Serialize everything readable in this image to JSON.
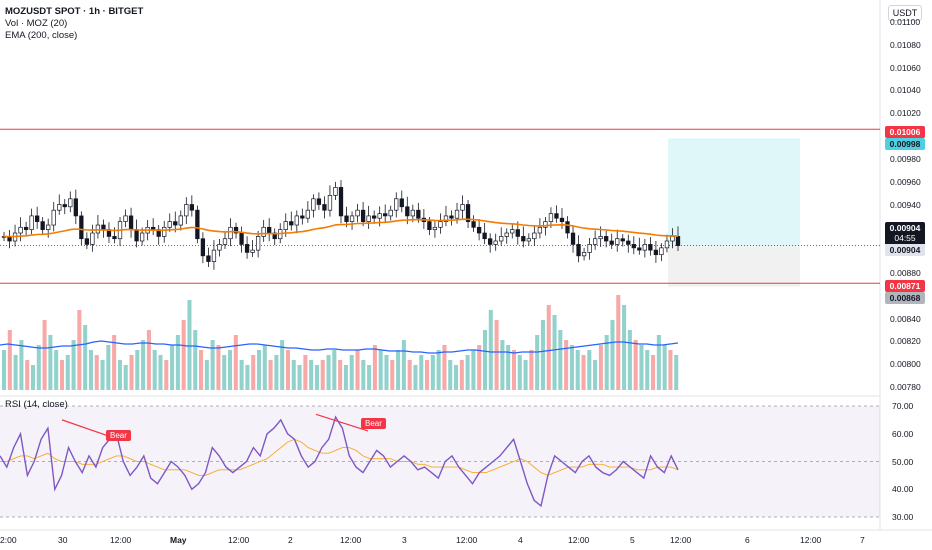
{
  "header": {
    "title": "MOZUSDT SPOT · 1h · BITGET",
    "volume_label": "Vol · MOZ (20)",
    "ema_label": "EMA (200, close)",
    "currency": "USDT"
  },
  "price_axis": {
    "labels": [
      "0.01100",
      "0.01080",
      "0.01060",
      "0.01040",
      "0.01020",
      "0.00980",
      "0.00960",
      "0.00940",
      "0.00880",
      "0.00840",
      "0.00820",
      "0.00800",
      "0.00780"
    ]
  },
  "price_tags": {
    "upper_line": "0.01006",
    "target": "0.00998",
    "current": "0.00904",
    "countdown": "04:55",
    "last": "0.00904",
    "lower_line": "0.00871",
    "stop": "0.00868"
  },
  "rsi": {
    "label": "RSI (14, close)",
    "axis_labels": [
      "70.00",
      "60.00",
      "50.00",
      "40.00",
      "30.00"
    ],
    "divergence_labels": [
      "Bear",
      "Bear"
    ]
  },
  "time_axis": {
    "labels": [
      "2:00",
      "30",
      "12:00",
      "May",
      "12:00",
      "2",
      "12:00",
      "3",
      "12:00",
      "4",
      "12:00",
      "5",
      "12:00",
      "6",
      "12:00",
      "7"
    ]
  },
  "chart_data": [
    {
      "type": "candlestick",
      "title": "MOZUSDT SPOT · 1h · BITGET",
      "ylim": [
        0.0086,
        0.0111
      ],
      "overlays": [
        "EMA (200, close)"
      ],
      "horizontal_lines": [
        0.01006,
        0.00871
      ],
      "position_tool": {
        "entry": 0.00904,
        "target": 0.00998,
        "stop": 0.00868
      },
      "close_series": [
        0.00912,
        0.00908,
        0.00915,
        0.0092,
        0.00918,
        0.0093,
        0.00925,
        0.00918,
        0.00922,
        0.00935,
        0.0094,
        0.00938,
        0.00945,
        0.0093,
        0.0091,
        0.00905,
        0.00915,
        0.00922,
        0.00918,
        0.00912,
        0.0091,
        0.00925,
        0.0093,
        0.00918,
        0.00908,
        0.00915,
        0.0092,
        0.00918,
        0.00912,
        0.0092,
        0.00925,
        0.00922,
        0.0093,
        0.0094,
        0.00935,
        0.0091,
        0.00895,
        0.0089,
        0.009,
        0.00905,
        0.0091,
        0.0092,
        0.00915,
        0.00905,
        0.00898,
        0.009,
        0.00912,
        0.0092,
        0.00915,
        0.0091,
        0.00918,
        0.00925,
        0.00922,
        0.0093,
        0.00928,
        0.00935,
        0.00945,
        0.0094,
        0.00935,
        0.00948,
        0.00955,
        0.0093,
        0.00925,
        0.0093,
        0.00935,
        0.00925,
        0.0093,
        0.00928,
        0.00932,
        0.0093,
        0.00935,
        0.00945,
        0.00938,
        0.0093,
        0.00935,
        0.00928,
        0.00925,
        0.00918,
        0.0092,
        0.00925,
        0.0093,
        0.00928,
        0.00935,
        0.0094,
        0.00925,
        0.0092,
        0.00915,
        0.0091,
        0.00905,
        0.00908,
        0.00912,
        0.00915,
        0.00918,
        0.00912,
        0.00908,
        0.0091,
        0.00915,
        0.0092,
        0.00925,
        0.00932,
        0.00928,
        0.00925,
        0.00915,
        0.00905,
        0.00895,
        0.00898,
        0.00905,
        0.0091,
        0.00912,
        0.00908,
        0.00905,
        0.0091,
        0.00908,
        0.00905,
        0.00902,
        0.009,
        0.00905,
        0.009,
        0.00896,
        0.00902,
        0.00908,
        0.00912,
        0.00904
      ]
    },
    {
      "type": "bar",
      "title": "Vol · MOZ (20)",
      "series": [
        {
          "name": "Vol · MOZ (20)",
          "values": [
            40,
            60,
            35,
            50,
            30,
            25,
            45,
            70,
            55,
            40,
            30,
            35,
            50,
            80,
            65,
            40,
            35,
            30,
            45,
            55,
            30,
            25,
            35,
            40,
            50,
            60,
            40,
            35,
            30,
            45,
            55,
            70,
            90,
            60,
            40,
            30,
            50,
            45,
            35,
            40,
            55,
            30,
            25,
            35,
            40,
            45,
            30,
            35,
            50,
            40,
            30,
            25,
            35,
            30,
            25,
            30,
            35,
            40,
            30,
            25,
            35,
            40,
            30,
            25,
            45,
            40,
            35,
            30,
            40,
            50,
            30,
            25,
            35,
            30,
            35,
            40,
            45,
            30,
            25,
            30,
            35,
            40,
            45,
            60,
            80,
            70,
            50,
            45,
            40,
            35,
            30,
            40,
            55,
            70,
            85,
            75,
            60,
            50,
            45,
            40,
            35,
            40,
            30,
            45,
            55,
            70,
            95,
            85,
            60,
            50,
            45,
            40,
            35,
            55,
            45,
            40,
            35
          ]
        },
        {
          "name": "MA",
          "values": [
            45,
            46,
            45,
            44,
            43,
            42,
            42,
            43,
            44,
            44,
            45,
            46,
            48,
            49,
            48,
            47,
            46,
            46,
            47,
            47,
            46,
            46,
            45,
            45,
            44,
            44,
            43,
            42,
            42,
            43,
            44,
            45,
            46,
            46,
            45,
            44,
            43,
            42,
            42,
            41,
            40,
            40,
            41,
            41,
            40,
            40,
            40,
            41,
            41,
            40,
            39,
            39,
            39,
            38,
            38,
            37,
            37,
            38,
            38,
            39,
            40,
            40,
            39,
            38,
            38,
            38,
            37,
            38,
            38,
            38,
            39,
            40,
            41,
            42,
            43,
            44,
            45,
            46,
            47,
            48,
            48,
            47,
            46,
            46,
            45,
            45,
            46,
            47
          ]
        }
      ]
    },
    {
      "type": "line",
      "title": "RSI (14, close)",
      "ylim": [
        30,
        70
      ],
      "series": [
        {
          "name": "RSI (14, close)",
          "values": [
            52,
            48,
            55,
            60,
            45,
            50,
            58,
            62,
            40,
            45,
            55,
            50,
            46,
            52,
            48,
            55,
            58,
            60,
            50,
            45,
            48,
            52,
            44,
            42,
            46,
            50,
            48,
            45,
            40,
            42,
            46,
            55,
            52,
            48,
            46,
            48,
            50,
            55,
            52,
            60,
            62,
            65,
            60,
            58,
            52,
            48,
            50,
            55,
            58,
            66,
            62,
            52,
            48,
            46,
            50,
            54,
            52,
            48,
            50,
            52,
            50,
            47,
            48,
            46,
            44,
            50,
            52,
            48,
            45,
            42,
            46,
            48,
            50,
            52,
            55,
            58,
            50,
            42,
            36,
            34,
            45,
            52,
            50,
            48,
            46,
            50,
            52,
            48,
            46,
            45,
            47,
            50,
            48,
            46,
            44,
            52,
            48,
            46,
            52,
            47
          ]
        },
        {
          "name": "MA",
          "values": [
            50,
            50,
            51,
            52,
            52,
            51,
            52,
            53,
            51,
            50,
            50,
            50,
            49,
            49,
            49,
            50,
            51,
            52,
            52,
            51,
            50,
            50,
            49,
            48,
            47,
            47,
            47,
            47,
            46,
            45,
            45,
            46,
            47,
            47,
            47,
            47,
            48,
            49,
            50,
            51,
            53,
            55,
            57,
            58,
            57,
            55,
            54,
            53,
            53,
            54,
            55,
            55,
            54,
            52,
            51,
            51,
            51,
            51,
            50,
            50,
            50,
            49,
            49,
            48,
            48,
            48,
            48,
            48,
            47,
            46,
            46,
            46,
            47,
            48,
            49,
            50,
            51,
            50,
            48,
            46,
            45,
            46,
            47,
            48,
            48,
            48,
            49,
            49,
            49,
            48,
            48,
            48,
            48,
            47,
            47,
            47,
            48,
            48,
            48,
            47
          ]
        }
      ]
    }
  ]
}
